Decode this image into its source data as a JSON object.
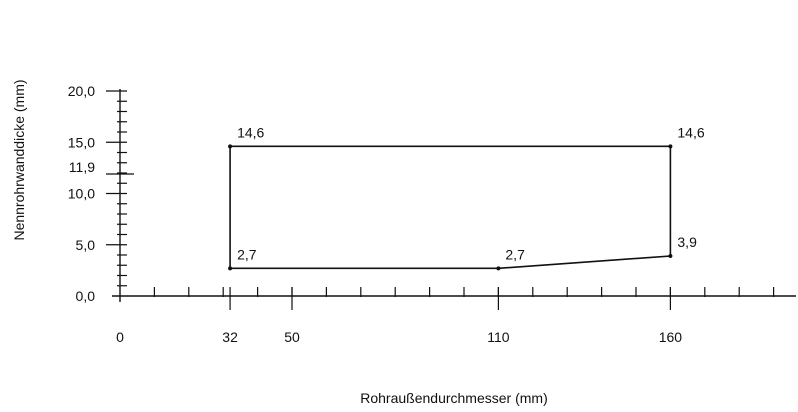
{
  "chart_data": {
    "type": "line",
    "title": "",
    "xlabel": "Rohraußendurchmesser (mm)",
    "ylabel": "Nennrohrwanddicke (mm)",
    "xlim": [
      0,
      190
    ],
    "ylim": [
      0,
      20
    ],
    "x_tick_labels": [
      "0",
      "32",
      "50",
      "110",
      "160"
    ],
    "y_tick_labels": [
      "0,0",
      "5,0",
      "10,0",
      "11,9",
      "15,0",
      "20,0"
    ],
    "grid": false,
    "series": [
      {
        "points": [
          {
            "x": 32,
            "y": 14.6,
            "label": "14,6"
          },
          {
            "x": 160,
            "y": 14.6,
            "label": "14,6"
          },
          {
            "x": 160,
            "y": 3.9,
            "label": "3,9"
          },
          {
            "x": 110,
            "y": 2.7,
            "label": "2,7"
          },
          {
            "x": 32,
            "y": 2.7,
            "label": "2,7"
          }
        ],
        "closed": true
      }
    ]
  }
}
